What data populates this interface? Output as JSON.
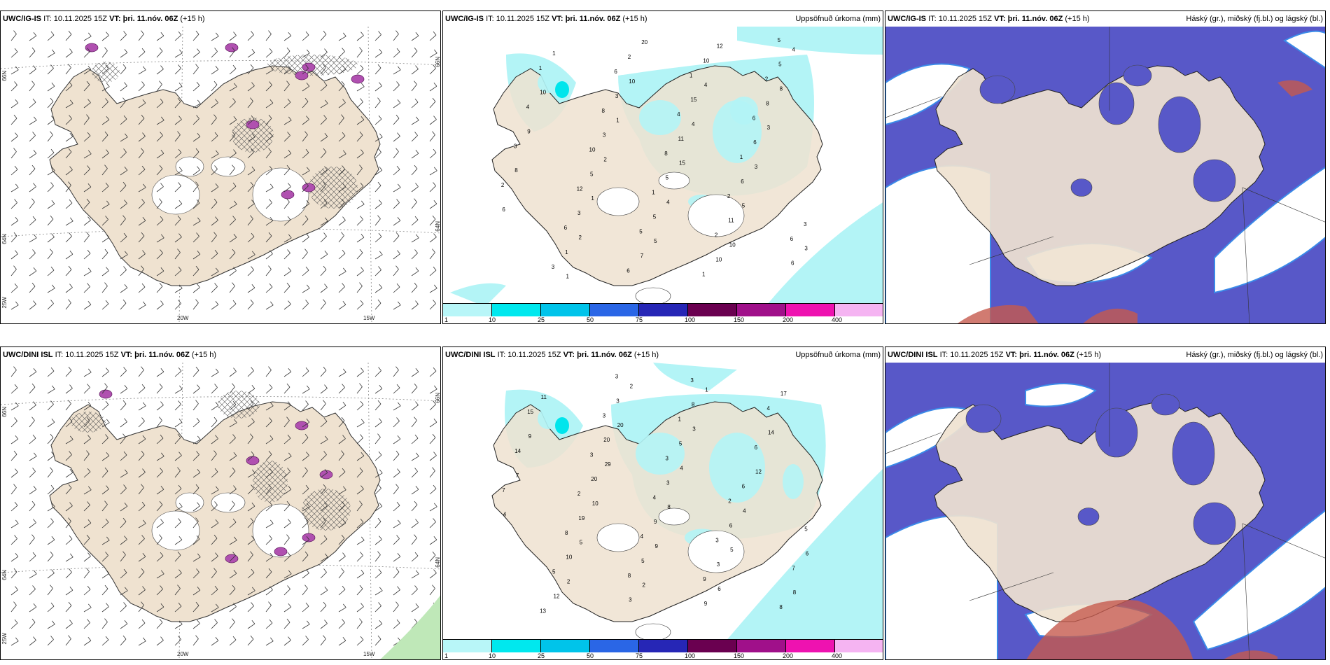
{
  "colors": {
    "land": "#efe2d0",
    "precip": "#b3f4f6",
    "precip_dark": "#00e5ec",
    "cloud_high": "#5858c8",
    "cloud_mid": "#2a52d6",
    "cloud_low": "#c65a4e",
    "sea": "#ffffff"
  },
  "panels": [
    {
      "id": "p1",
      "model": "UWC/IG-IS",
      "it_label": "IT:",
      "it_value": "10.11.2025 15Z",
      "vt_label": "VT:",
      "vt_value": "þri. 11.nóv. 06Z",
      "lead": "(+15",
      "lead_cont": "h)",
      "right_title": "",
      "kind": "wind"
    },
    {
      "id": "p2",
      "model": "UWC/IG-IS",
      "it_label": "IT:",
      "it_value": "10.11.2025 15Z",
      "vt_label": "VT:",
      "vt_value": "þri. 11.nóv. 06Z",
      "lead": "(+15 h)",
      "right_title": "Uppsöfnuð úrkoma (mm)",
      "kind": "precip"
    },
    {
      "id": "p3",
      "model": "UWC/IG-IS",
      "it_label": "IT:",
      "it_value": "10.11.2025 15Z",
      "vt_label": "VT:",
      "vt_value": "þri. 11.nóv. 06Z",
      "lead": "(+15 h)",
      "right_title": "Háský (gr.), miðský (fj.bl.) og lágský (bl.)",
      "kind": "cloud"
    },
    {
      "id": "p4",
      "model": "UWC/DINI ISL",
      "it_label": "IT:",
      "it_value": "10.11.2025 15Z",
      "vt_label": "VT:",
      "vt_value": "þri. 11.nóv. 06Z",
      "lead": "(+15 h)",
      "right_title": "",
      "kind": "wind"
    },
    {
      "id": "p5",
      "model": "UWC/DINI ISL",
      "it_label": "IT:",
      "it_value": "10.11.2025 15Z",
      "vt_label": "VT:",
      "vt_value": "þri. 11.nóv. 06Z",
      "lead": "(+15 h)",
      "right_title": "Uppsöfnuð úrkoma (mm)",
      "kind": "precip"
    },
    {
      "id": "p6",
      "model": "UWC/DINI ISL",
      "it_label": "IT:",
      "it_value": "10.11.2025 15Z",
      "vt_label": "VT:",
      "vt_value": "þri. 11.nóv. 06Z",
      "lead": "(+15 h)",
      "right_title": "Háský (gr.), miðský (fj.bl.) og lágský (bl.)",
      "kind": "cloud"
    }
  ],
  "coord_labels": {
    "n66": "66N",
    "n64": "64N",
    "w25": "25W",
    "w20": "20W",
    "w15": "15W"
  },
  "colorbar": {
    "labels": [
      "1",
      "10",
      "25",
      "50",
      "75",
      "100",
      "150",
      "200",
      "400"
    ],
    "colors": [
      "#b8f6f8",
      "#00e8ee",
      "#00c4ea",
      "#2a66e6",
      "#2626b6",
      "#6a0050",
      "#a0108a",
      "#ee12b0",
      "#f5b4f2"
    ]
  },
  "precip_values": {
    "p2": [
      "1",
      "2",
      "1",
      "2",
      "1",
      "10",
      "20",
      "5",
      "4",
      "15",
      "4",
      "4",
      "12",
      "10",
      "5",
      "3",
      "3",
      "8",
      "4",
      "3",
      "6",
      "8",
      "9",
      "10",
      "1",
      "1",
      "3",
      "5",
      "3",
      "3",
      "2",
      "7",
      "5",
      "5",
      "11",
      "15",
      "10",
      "10",
      "11",
      "6",
      "6",
      "8",
      "5",
      "6",
      "3",
      "2",
      "3",
      "4",
      "1",
      "3",
      "6",
      "12",
      "10",
      "8",
      "6",
      "6",
      "5",
      "1",
      "8",
      "4",
      "1",
      "1",
      "2",
      "2",
      "1",
      "6",
      "2",
      "5",
      "6"
    ],
    "p5": [
      "2",
      "5",
      "10",
      "29",
      "20",
      "2",
      "2",
      "9",
      "8",
      "4",
      "3",
      "1",
      "6",
      "5",
      "4",
      "12",
      "14",
      "17",
      "8",
      "6",
      "4",
      "7",
      "9",
      "11",
      "12",
      "10",
      "19",
      "20",
      "20",
      "3",
      "3",
      "5",
      "9",
      "3",
      "5",
      "8",
      "9",
      "3",
      "6",
      "6",
      "6",
      "4",
      "8",
      "7",
      "5",
      "7",
      "14",
      "15",
      "13",
      "5",
      "8",
      "2",
      "3",
      "3",
      "3",
      "8",
      "4",
      "4",
      "3",
      "1",
      "3",
      "9",
      "3",
      "2"
    ]
  }
}
